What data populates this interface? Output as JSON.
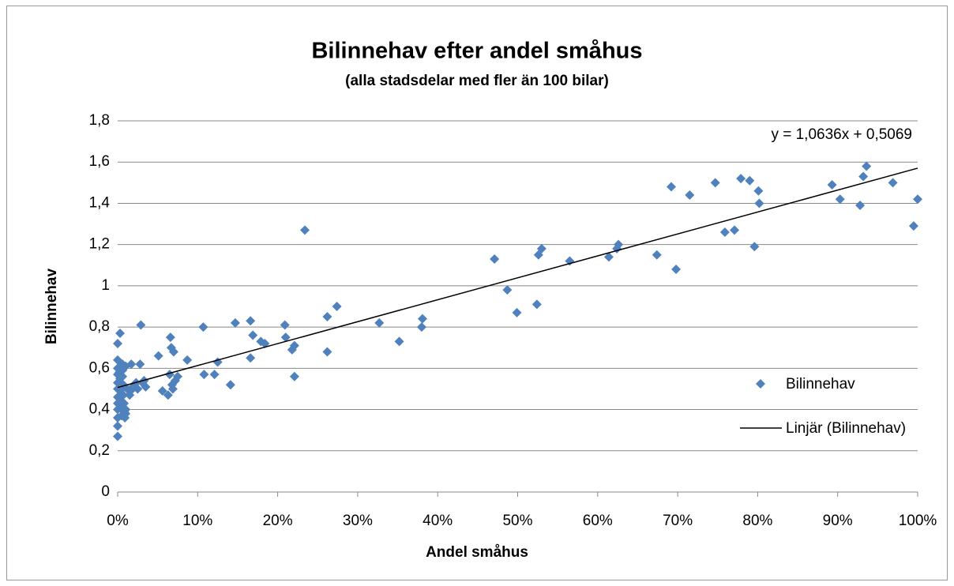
{
  "chart_data": {
    "type": "scatter",
    "title": "Bilinnehav efter andel småhus",
    "subtitle": "(alla stadsdelar med fler än 100 bilar)",
    "x_label": "Andel småhus",
    "y_label": "Bilinnehav",
    "xlim": [
      0,
      1
    ],
    "ylim": [
      0,
      1.8
    ],
    "xticks": [
      {
        "value": 0,
        "label": "0%"
      },
      {
        "value": 0.1,
        "label": "10%"
      },
      {
        "value": 0.2,
        "label": "20%"
      },
      {
        "value": 0.3,
        "label": "30%"
      },
      {
        "value": 0.4,
        "label": "40%"
      },
      {
        "value": 0.5,
        "label": "50%"
      },
      {
        "value": 0.6,
        "label": "60%"
      },
      {
        "value": 0.7,
        "label": "70%"
      },
      {
        "value": 0.8,
        "label": "80%"
      },
      {
        "value": 0.9,
        "label": "90%"
      },
      {
        "value": 1,
        "label": "100%"
      }
    ],
    "yticks": [
      0,
      {
        "value": 0.2,
        "label": "0,2"
      },
      {
        "value": 0.4,
        "label": "0,4"
      },
      {
        "value": 0.6,
        "label": "0,6"
      },
      {
        "value": 0.8,
        "label": "0,8"
      },
      1,
      {
        "value": 1.2,
        "label": "1,2"
      },
      {
        "value": 1.4,
        "label": "1,4"
      },
      {
        "value": 1.6,
        "label": "1,6"
      },
      {
        "value": 1.8,
        "label": "1,8"
      }
    ],
    "grid": true,
    "legend": "right",
    "series": [
      {
        "name": "Bilinnehav",
        "color": "#4f81bd",
        "x": [
          0,
          0,
          0,
          0,
          0,
          0,
          0,
          0,
          0,
          0,
          0,
          0,
          0.003,
          0.002,
          0.003,
          0.003,
          0.004,
          0.004,
          0.005,
          0.006,
          0.006,
          0.006,
          0.007,
          0.007,
          0.008,
          0.008,
          0.009,
          0.01,
          0.01,
          0.01,
          0.012,
          0.015,
          0.016,
          0.017,
          0.019,
          0.023,
          0.025,
          0.028,
          0.029,
          0.031,
          0.033,
          0.035,
          0.051,
          0.056,
          0.063,
          0.065,
          0.066,
          0.067,
          0.068,
          0.069,
          0.07,
          0.072,
          0.075,
          0.087,
          0.107,
          0.108,
          0.121,
          0.125,
          0.141,
          0.147,
          0.166,
          0.166,
          0.169,
          0.179,
          0.184,
          0.209,
          0.21,
          0.218,
          0.221,
          0.221,
          0.234,
          0.262,
          0.262,
          0.274,
          0.327,
          0.352,
          0.38,
          0.381,
          0.471,
          0.487,
          0.499,
          0.524,
          0.526,
          0.53,
          0.565,
          0.614,
          0.624,
          0.626,
          0.674,
          0.692,
          0.698,
          0.715,
          0.747,
          0.759,
          0.771,
          0.779,
          0.79,
          0.796,
          0.801,
          0.802,
          0.893,
          0.903,
          0.928,
          0.932,
          0.936,
          0.969,
          0.995,
          1
        ],
        "values": [
          0.72,
          0.64,
          0.6,
          0.57,
          0.53,
          0.5,
          0.46,
          0.43,
          0.4,
          0.36,
          0.32,
          0.27,
          0.77,
          0.58,
          0.55,
          0.49,
          0.44,
          0.41,
          0.37,
          0.62,
          0.59,
          0.56,
          0.52,
          0.47,
          0.43,
          0.39,
          0.36,
          0.4,
          0.38,
          0.61,
          0.5,
          0.47,
          0.49,
          0.62,
          0.51,
          0.53,
          0.5,
          0.62,
          0.81,
          0.53,
          0.54,
          0.51,
          0.66,
          0.49,
          0.47,
          0.57,
          0.75,
          0.7,
          0.52,
          0.5,
          0.68,
          0.54,
          0.56,
          0.64,
          0.8,
          0.57,
          0.57,
          0.63,
          0.52,
          0.82,
          0.83,
          0.65,
          0.76,
          0.73,
          0.72,
          0.81,
          0.75,
          0.69,
          0.71,
          0.56,
          1.27,
          0.85,
          0.68,
          0.9,
          0.82,
          0.73,
          0.8,
          0.84,
          1.13,
          0.98,
          0.87,
          0.91,
          1.15,
          1.18,
          1.12,
          1.14,
          1.18,
          1.2,
          1.15,
          1.48,
          1.08,
          1.44,
          1.5,
          1.26,
          1.27,
          1.52,
          1.51,
          1.19,
          1.46,
          1.4,
          1.49,
          1.42,
          1.39,
          1.53,
          1.58,
          1.5,
          1.29,
          1.42
        ]
      }
    ],
    "trendline": {
      "name": "Linjär (Bilinnehav)",
      "color": "#000000",
      "slope": 1.0636,
      "intercept": 0.5069,
      "label": "y = 1,0636x + 0,5069"
    }
  }
}
